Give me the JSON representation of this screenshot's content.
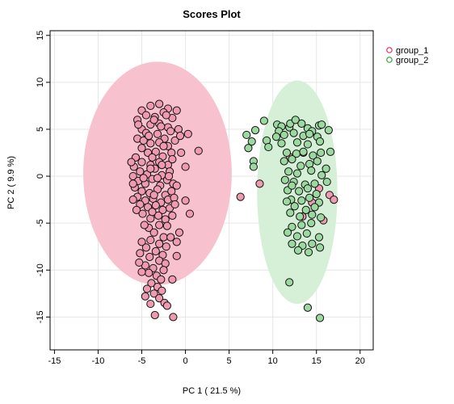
{
  "chart_data": {
    "type": "scatter",
    "title": "Scores Plot",
    "xlabel": "PC 1 ( 21.5 %)",
    "ylabel": "PC 2 ( 9.9 %)",
    "xlim": [
      -15.5,
      21.5
    ],
    "ylim": [
      -18.5,
      15.5
    ],
    "xticks": [
      -15,
      -10,
      -5,
      0,
      5,
      10,
      15,
      20
    ],
    "yticks": [
      -15,
      -10,
      -5,
      0,
      5,
      10,
      15
    ],
    "grid": true,
    "legend_position": "top-right",
    "series": [
      {
        "name": "group_1",
        "color": "#E0305A",
        "fill": "#F09AB0",
        "ellipse": {
          "cx": -3.2,
          "cy": 0.3,
          "rx": 8.5,
          "ry": 11.9,
          "fill": "#F7C1CE"
        },
        "points": [
          [
            -5,
            7
          ],
          [
            -4,
            7.5
          ],
          [
            -3,
            7.7
          ],
          [
            -2,
            7.2
          ],
          [
            -4.5,
            6.5
          ],
          [
            -3.5,
            6.3
          ],
          [
            -2.5,
            6.8
          ],
          [
            -1.5,
            6.2
          ],
          [
            -1,
            7
          ],
          [
            -5.5,
            6
          ],
          [
            -4,
            5.5
          ],
          [
            -3,
            5.6
          ],
          [
            -2,
            5.2
          ],
          [
            -5,
            5
          ],
          [
            -4.5,
            4.6
          ],
          [
            -3.2,
            4.5
          ],
          [
            -2.4,
            4
          ],
          [
            -1.7,
            4.8
          ],
          [
            -5.5,
            4
          ],
          [
            -4,
            3.5
          ],
          [
            -3,
            3.6
          ],
          [
            -2,
            3.2
          ],
          [
            -1.2,
            3.8
          ],
          [
            -5,
            3
          ],
          [
            -4.3,
            2.5
          ],
          [
            -3.4,
            2.6
          ],
          [
            -2.6,
            2.1
          ],
          [
            -1.6,
            2.5
          ],
          [
            -5.7,
            2
          ],
          [
            -5,
            1.5
          ],
          [
            -4,
            1.2
          ],
          [
            -3,
            1.5
          ],
          [
            -2,
            1.2
          ],
          [
            -1.5,
            1.8
          ],
          [
            -5.9,
            1
          ],
          [
            -5.2,
            0.5
          ],
          [
            -4.4,
            0.2
          ],
          [
            -3.5,
            0.8
          ],
          [
            -2.7,
            0.1
          ],
          [
            -1.8,
            0.5
          ],
          [
            -6,
            0
          ],
          [
            -5.4,
            -0.5
          ],
          [
            -4.6,
            -0.8
          ],
          [
            -3.8,
            -0.3
          ],
          [
            -2.9,
            -1
          ],
          [
            -2.1,
            -0.4
          ],
          [
            -1.4,
            -0.8
          ],
          [
            -5.8,
            -1.2
          ],
          [
            -5,
            -1.6
          ],
          [
            -4.1,
            -1.8
          ],
          [
            -3.2,
            -1.4
          ],
          [
            -2.3,
            -2
          ],
          [
            -1.6,
            -1.6
          ],
          [
            -5.5,
            -2.2
          ],
          [
            -4.6,
            -2.6
          ],
          [
            -3.7,
            -2.4
          ],
          [
            -2.8,
            -2.8
          ],
          [
            -2,
            -2.5
          ],
          [
            -1.3,
            -2.3
          ],
          [
            -5.2,
            -3
          ],
          [
            -4.3,
            -3.3
          ],
          [
            -3.4,
            -3.1
          ],
          [
            -2.6,
            -3.6
          ],
          [
            -1.8,
            -3.4
          ],
          [
            -5.6,
            -3.6
          ],
          [
            -4.9,
            -4
          ],
          [
            -4,
            -4.5
          ],
          [
            -3.1,
            -4.2
          ],
          [
            -2.3,
            -4.6
          ],
          [
            -1.5,
            -4.2
          ],
          [
            -6,
            -2.5
          ],
          [
            -1,
            -1
          ],
          [
            -0.5,
            2.5
          ],
          [
            0,
            1
          ],
          [
            -0.8,
            5
          ],
          [
            -1.2,
            -3
          ],
          [
            -6.2,
            1.5
          ],
          [
            -3.6,
            6
          ],
          [
            -2.8,
            5.3
          ],
          [
            -4.8,
            3.8
          ],
          [
            -3,
            -5.2
          ],
          [
            -4.2,
            -5.5
          ],
          [
            -2.1,
            -5.3
          ],
          [
            -3.6,
            -6
          ],
          [
            -2.5,
            -6.5
          ],
          [
            -4,
            -6.8
          ],
          [
            -3,
            -7.2
          ],
          [
            -5,
            -7
          ],
          [
            -2.2,
            -7.5
          ],
          [
            -4.5,
            -7.6
          ],
          [
            -3.4,
            -8
          ],
          [
            -2.6,
            -8.4
          ],
          [
            -4.1,
            -8.6
          ],
          [
            -5.2,
            -8.2
          ],
          [
            -3,
            -9
          ],
          [
            -2.3,
            -9.3
          ],
          [
            -4.6,
            -9.5
          ],
          [
            -3.7,
            -9.8
          ],
          [
            -2.5,
            -10
          ],
          [
            -4.2,
            -10.3
          ],
          [
            -3.3,
            -10.6
          ],
          [
            -5,
            -10.2
          ],
          [
            -2.8,
            -11
          ],
          [
            -3.9,
            -11.4
          ],
          [
            -3.2,
            -11.8
          ],
          [
            -4.4,
            -12
          ],
          [
            -2.7,
            -12.2
          ],
          [
            -3.6,
            -12.5
          ],
          [
            -4.6,
            -12.8
          ],
          [
            -3,
            -13
          ],
          [
            -4,
            -13.6
          ],
          [
            -2.4,
            -13.5
          ],
          [
            -1.5,
            -11
          ],
          [
            -1,
            -8.5
          ],
          [
            -1.7,
            -6.5
          ],
          [
            -0.7,
            -6
          ],
          [
            -5.3,
            -9.2
          ],
          [
            -3.5,
            -14.8
          ],
          [
            -1.4,
            -15
          ],
          [
            -2.1,
            -13.8
          ],
          [
            -4,
            0.8
          ],
          [
            -3.8,
            2
          ],
          [
            -3.2,
            -0.2
          ],
          [
            -2.5,
            3.2
          ],
          [
            -4.8,
            -0.2
          ],
          [
            -3.6,
            -2
          ],
          [
            -2.7,
            1.2
          ],
          [
            -4.2,
            4.3
          ],
          [
            -1.9,
            0
          ],
          [
            -3.8,
            -3.8
          ],
          [
            0.3,
            4.5
          ],
          [
            0.5,
            -4
          ],
          [
            1.5,
            2.7
          ],
          [
            -0.6,
            4.3
          ],
          [
            0,
            -2.6
          ],
          [
            -5.4,
            5.5
          ],
          [
            -6,
            -0.8
          ],
          [
            -2.2,
            6.5
          ],
          [
            -4.7,
            -5.2
          ],
          [
            -1,
            -7
          ],
          [
            12,
            2
          ],
          [
            13.5,
            2.5
          ],
          [
            15.3,
            -1.3
          ],
          [
            16.5,
            -2
          ],
          [
            17,
            -2.5
          ],
          [
            14.5,
            -2.8
          ],
          [
            13.4,
            -4.3
          ],
          [
            15.8,
            -4.7
          ],
          [
            8.5,
            -0.8
          ],
          [
            6.3,
            -2.2
          ]
        ]
      },
      {
        "name": "group_2",
        "color": "#2AA837",
        "fill": "#9CD9A0",
        "ellipse": {
          "cx": 12.8,
          "cy": -1.7,
          "rx": 4.6,
          "ry": 11.9,
          "fill": "#D6EFD7"
        },
        "points": [
          [
            7,
            4.4
          ],
          [
            8,
            4.9
          ],
          [
            7.6,
            3.7
          ],
          [
            9.3,
            3.8
          ],
          [
            9.5,
            3.1
          ],
          [
            7.2,
            3
          ],
          [
            7.8,
            1.6
          ],
          [
            7.8,
            1
          ],
          [
            10.5,
            5.5
          ],
          [
            11,
            5.3
          ],
          [
            10.7,
            4.8
          ],
          [
            11.9,
            5.2
          ],
          [
            12,
            5.6
          ],
          [
            12.6,
            6
          ],
          [
            13.3,
            5.6
          ],
          [
            14,
            5.1
          ],
          [
            14.5,
            4.8
          ],
          [
            15.3,
            5.4
          ],
          [
            15.6,
            5.5
          ],
          [
            16.4,
            4.9
          ],
          [
            10.4,
            4.2
          ],
          [
            11.3,
            4.4
          ],
          [
            12.4,
            4.6
          ],
          [
            13.5,
            4.3
          ],
          [
            14.2,
            4.5
          ],
          [
            15.1,
            4.2
          ],
          [
            11,
            3.5
          ],
          [
            12.8,
            3.6
          ],
          [
            14,
            3.4
          ],
          [
            15.4,
            3.7
          ],
          [
            11.6,
            2.5
          ],
          [
            12.7,
            2.4
          ],
          [
            13.5,
            2.6
          ],
          [
            14.6,
            2.2
          ],
          [
            15.5,
            2.5
          ],
          [
            16.6,
            2.6
          ],
          [
            11.3,
            1.6
          ],
          [
            12.2,
            1.8
          ],
          [
            13.2,
            1.1
          ],
          [
            14.2,
            1.3
          ],
          [
            15.1,
            1.6
          ],
          [
            16.1,
            0.8
          ],
          [
            11.8,
            0.5
          ],
          [
            12.8,
            0.3
          ],
          [
            14.4,
            0.6
          ],
          [
            15.6,
            0.1
          ],
          [
            11.4,
            -0.4
          ],
          [
            12.4,
            -0.6
          ],
          [
            13.7,
            -0.9
          ],
          [
            14.8,
            -0.8
          ],
          [
            16.2,
            -0.6
          ],
          [
            11.7,
            -1.5
          ],
          [
            13,
            -1.6
          ],
          [
            14,
            -1.3
          ],
          [
            15,
            -1.9
          ],
          [
            12.1,
            -2.5
          ],
          [
            13.3,
            -2.6
          ],
          [
            14.2,
            -2.3
          ],
          [
            15.3,
            -2.8
          ],
          [
            11.6,
            -2.7
          ],
          [
            12.5,
            -3.2
          ],
          [
            13.8,
            -3.6
          ],
          [
            14.8,
            -3.3
          ],
          [
            12,
            -3.9
          ],
          [
            13.1,
            -4.3
          ],
          [
            14.5,
            -4.1
          ],
          [
            15.5,
            -4.4
          ],
          [
            12.2,
            -5.4
          ],
          [
            13.3,
            -5.2
          ],
          [
            14.4,
            -5
          ],
          [
            11.7,
            -6
          ],
          [
            12.8,
            -6.4
          ],
          [
            13.9,
            -6.1
          ],
          [
            15.3,
            -6.5
          ],
          [
            12.2,
            -7.2
          ],
          [
            13.4,
            -7.4
          ],
          [
            14.5,
            -7.2
          ],
          [
            12.9,
            -7.9
          ],
          [
            14.1,
            -8.1
          ],
          [
            15.4,
            -7.6
          ],
          [
            11.9,
            -11.3
          ],
          [
            14,
            -14
          ],
          [
            15.4,
            -15.1
          ],
          [
            9,
            5.9
          ],
          [
            12.2,
            -1
          ]
        ]
      }
    ]
  }
}
